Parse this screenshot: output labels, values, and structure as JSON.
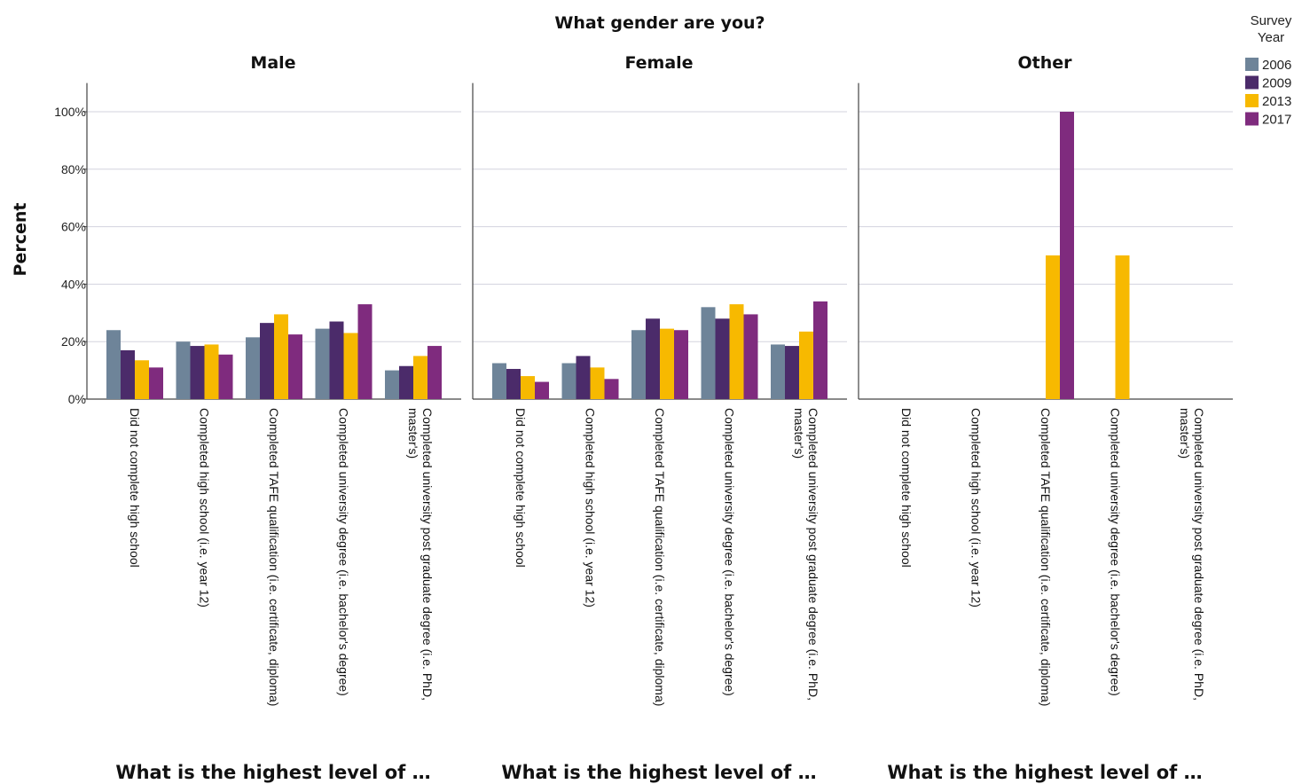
{
  "chart_data": {
    "type": "bar",
    "title": "What gender are you?",
    "ylabel": "Percent",
    "xlabel": "What is the highest level of …",
    "ylim": [
      0,
      110
    ],
    "yticks": [
      "0%",
      "20%",
      "40%",
      "60%",
      "80%",
      "100%"
    ],
    "grid": true,
    "legend": {
      "title_lines": [
        "Survey",
        "Year"
      ],
      "placement": "top-right"
    },
    "categories": [
      [
        "Did not complete high school"
      ],
      [
        "Completed high school (i.e. year 12)"
      ],
      [
        "Completed TAFE qualification (i.e. certificate, diploma)"
      ],
      [
        "Completed university degree (i.e. bachelor's degree)"
      ],
      [
        "Completed university post graduate degree (i.e. PhD,",
        "master's)"
      ]
    ],
    "series": [
      {
        "name": "2006",
        "color": "#6e8499"
      },
      {
        "name": "2009",
        "color": "#4b2b6a"
      },
      {
        "name": "2013",
        "color": "#f7b900"
      },
      {
        "name": "2017",
        "color": "#7f2b7e"
      }
    ],
    "panels": [
      {
        "name": "Male",
        "values": [
          [
            24,
            17,
            13.5,
            11
          ],
          [
            20,
            18.5,
            19,
            15.5
          ],
          [
            21.5,
            26.5,
            29.5,
            22.5
          ],
          [
            24.5,
            27,
            23,
            33
          ],
          [
            10,
            11.5,
            15,
            18.5
          ]
        ]
      },
      {
        "name": "Female",
        "values": [
          [
            12.5,
            10.5,
            8,
            6
          ],
          [
            12.5,
            15,
            11,
            7
          ],
          [
            24,
            28,
            24.5,
            24
          ],
          [
            32,
            28,
            33,
            29.5
          ],
          [
            19,
            18.5,
            23.5,
            34
          ]
        ]
      },
      {
        "name": "Other",
        "values": [
          [
            0,
            0,
            0,
            0
          ],
          [
            0,
            0,
            0,
            0
          ],
          [
            0,
            0,
            50,
            100
          ],
          [
            0,
            0,
            50,
            0
          ],
          [
            0,
            0,
            0,
            0
          ]
        ]
      }
    ]
  }
}
